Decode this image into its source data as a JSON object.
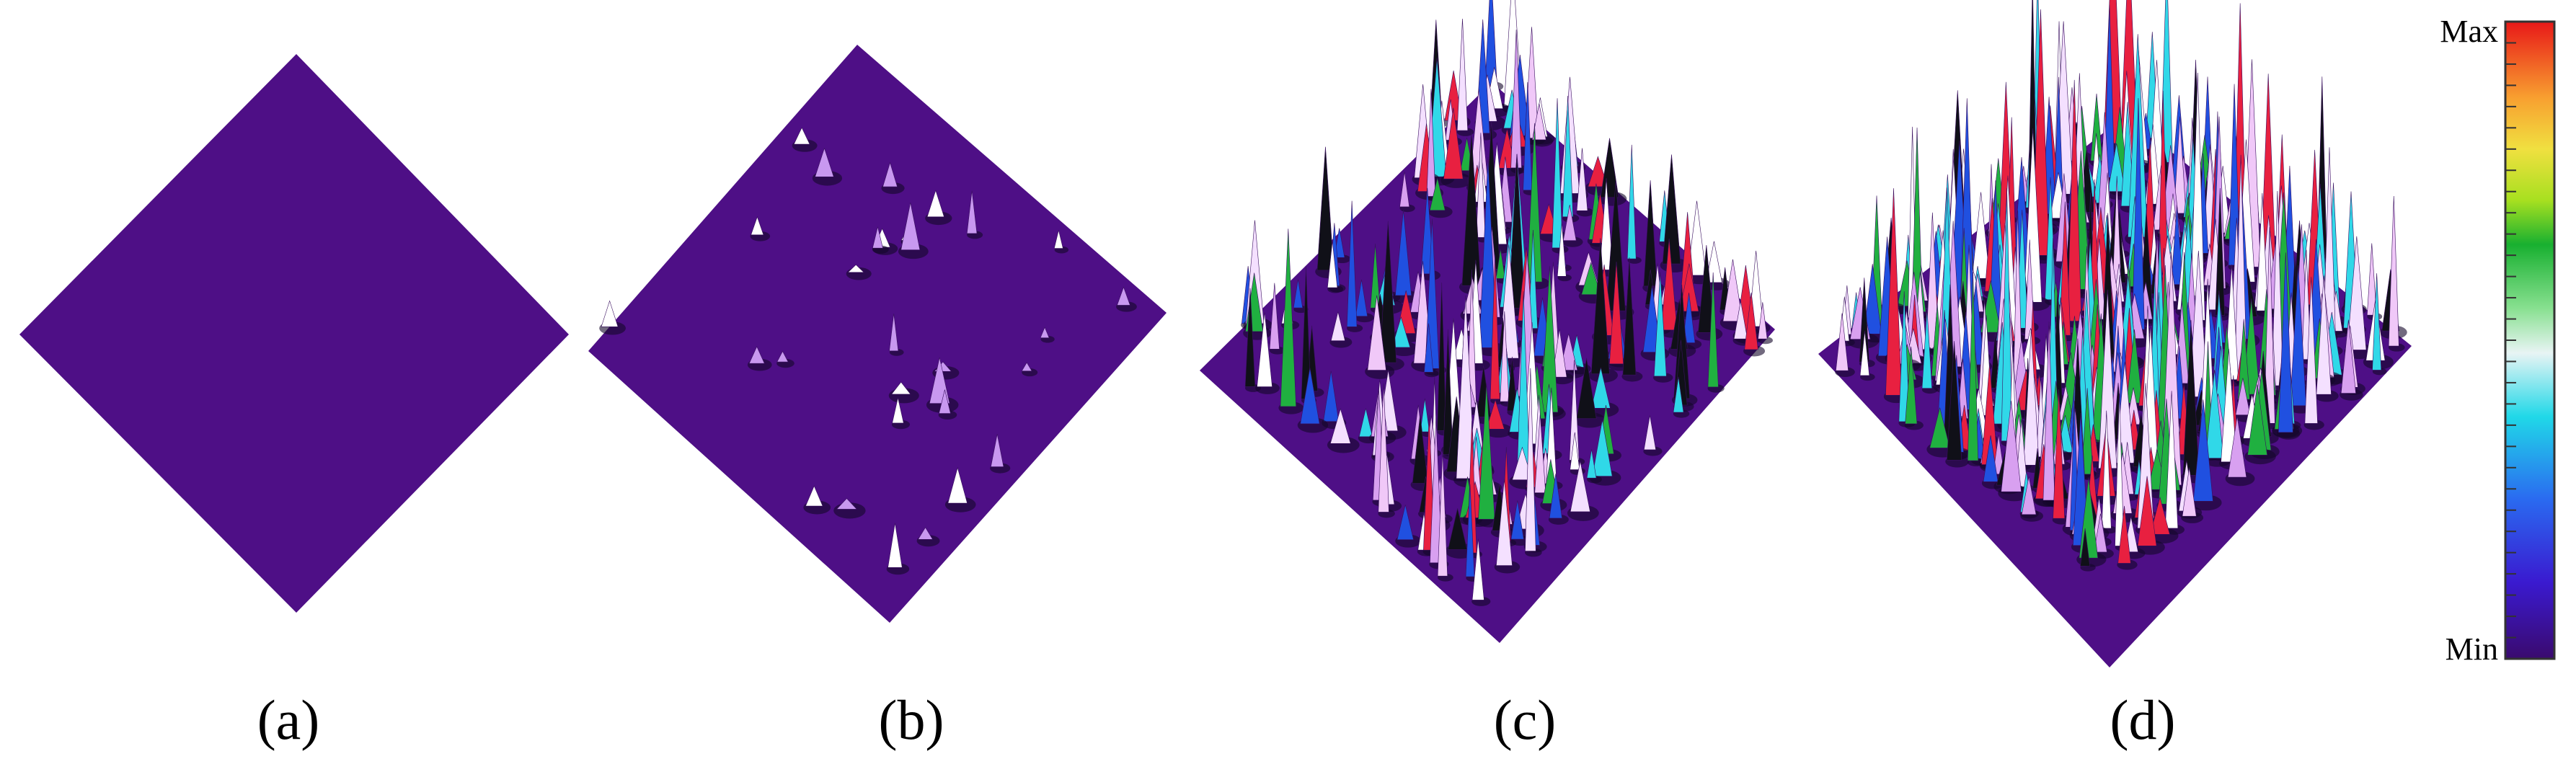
{
  "panels": [
    {
      "label": "(a)"
    },
    {
      "label": "(b)"
    },
    {
      "label": "(c)"
    },
    {
      "label": "(d)"
    }
  ],
  "colorbar": {
    "max": "Max",
    "min": "Min"
  }
}
